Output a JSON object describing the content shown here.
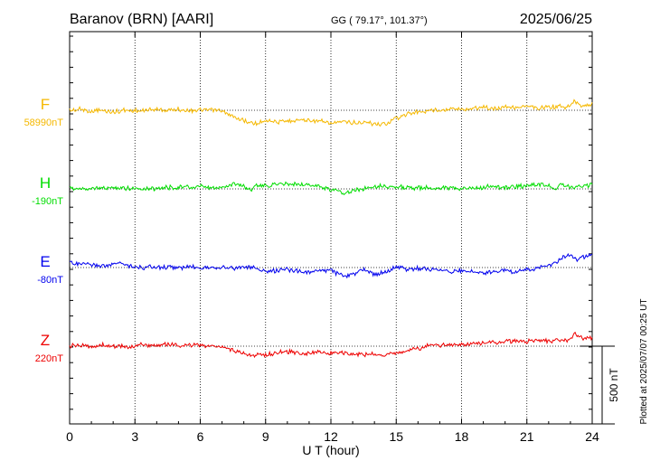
{
  "header": {
    "station": "Baranov (BRN)  [AARI]",
    "coords": "GG ( 79.17°, 101.37°)",
    "date": "2025/06/25",
    "plotted": "Plotted at 2025/07/07 00:25 UT"
  },
  "scale_bar": {
    "label": "500 nT"
  },
  "chart_data": {
    "type": "line",
    "title": "Baranov (BRN)  [AARI]",
    "xlabel": "U T (hour)",
    "ylabel": "",
    "xlim": [
      0,
      24
    ],
    "x_ticks": [
      0,
      3,
      6,
      9,
      12,
      15,
      18,
      21,
      24
    ],
    "grid": true,
    "scale_nT": 500,
    "series": [
      {
        "name": "F",
        "baseline_label": "58990nT",
        "color": "#f5b800",
        "x": [
          0,
          0.5,
          1,
          1.5,
          2,
          2.3,
          2.5,
          3,
          3.5,
          4,
          4.5,
          5,
          5.5,
          6,
          6.5,
          7,
          7.3,
          7.6,
          8,
          8.3,
          8.6,
          9,
          9.5,
          10,
          10.5,
          11,
          11.5,
          12,
          12.5,
          13,
          13.5,
          14,
          14.3,
          14.6,
          15,
          15.5,
          16,
          16.5,
          17,
          17.5,
          18,
          18.5,
          19,
          19.5,
          20,
          20.5,
          21,
          21.5,
          22,
          22.5,
          22.8,
          23,
          23.2,
          23.5,
          24
        ],
        "values": [
          0,
          5,
          -5,
          0,
          -10,
          -5,
          0,
          -5,
          0,
          5,
          0,
          5,
          0,
          0,
          0,
          -5,
          -30,
          -45,
          -65,
          -80,
          -85,
          -60,
          -75,
          -70,
          -60,
          -65,
          -70,
          -85,
          -75,
          -80,
          -80,
          -85,
          -90,
          -85,
          -50,
          -25,
          -10,
          -5,
          5,
          10,
          5,
          15,
          20,
          10,
          25,
          20,
          25,
          10,
          20,
          25,
          15,
          30,
          60,
          30,
          40
        ]
      },
      {
        "name": "H",
        "baseline_label": "-190nT",
        "color": "#00dd00",
        "x": [
          0,
          0.5,
          1,
          1.5,
          2,
          2.5,
          3,
          3.5,
          4,
          4.5,
          5,
          5.5,
          6,
          6.5,
          7,
          7.5,
          8,
          8.3,
          8.5,
          9,
          9.5,
          10,
          10.5,
          11,
          11.5,
          12,
          12.3,
          12.6,
          13,
          13.5,
          14,
          14.5,
          15,
          15.5,
          16,
          16.5,
          17,
          17.5,
          18,
          18.5,
          19,
          19.5,
          20,
          20.5,
          21,
          21.5,
          22,
          22.3,
          22.5,
          23,
          23.5,
          24
        ],
        "values": [
          0,
          5,
          0,
          5,
          10,
          5,
          5,
          0,
          5,
          10,
          10,
          10,
          15,
          5,
          10,
          35,
          20,
          -10,
          25,
          15,
          30,
          35,
          30,
          25,
          15,
          -10,
          -5,
          -25,
          -15,
          5,
          20,
          15,
          10,
          10,
          5,
          5,
          10,
          5,
          0,
          5,
          10,
          15,
          5,
          15,
          20,
          25,
          25,
          -5,
          30,
          10,
          20,
          25
        ]
      },
      {
        "name": "E",
        "baseline_label": "-80nT",
        "color": "#0000ee",
        "x": [
          0,
          0.3,
          0.6,
          1,
          1.5,
          2,
          2.3,
          2.6,
          3,
          3.3,
          3.6,
          4,
          4.5,
          5,
          5.5,
          6,
          6.5,
          7,
          7.5,
          8,
          8.5,
          9,
          9.5,
          10,
          10.5,
          11,
          11.5,
          12,
          12.3,
          12.6,
          13,
          13.5,
          14,
          14.5,
          15,
          15.5,
          16,
          16.5,
          17,
          17.5,
          18,
          18.5,
          19,
          19.5,
          20,
          20.5,
          21,
          21.3,
          21.6,
          22,
          22.3,
          22.6,
          23,
          23.3,
          23.6,
          24
        ],
        "values": [
          40,
          20,
          25,
          15,
          10,
          15,
          35,
          15,
          10,
          -5,
          10,
          0,
          5,
          0,
          5,
          0,
          5,
          0,
          -5,
          5,
          0,
          -25,
          -20,
          -10,
          -20,
          -35,
          -20,
          -15,
          -40,
          -55,
          -45,
          -10,
          -45,
          -25,
          5,
          -10,
          -5,
          -10,
          -15,
          -25,
          -20,
          -25,
          -35,
          -25,
          -15,
          -30,
          -10,
          -15,
          0,
          10,
          30,
          60,
          75,
          55,
          70,
          85
        ]
      },
      {
        "name": "Z",
        "baseline_label": "220nT",
        "color": "#ee0000",
        "x": [
          0,
          0.5,
          1,
          1.5,
          2,
          2.5,
          3,
          3.3,
          3.6,
          4,
          4.5,
          5,
          5.5,
          6,
          6.5,
          7,
          7.5,
          8,
          8.3,
          8.6,
          9,
          9.5,
          10,
          10.5,
          11,
          11.5,
          12,
          12.5,
          13,
          13.5,
          14,
          14.3,
          14.6,
          15,
          15.5,
          16,
          16.5,
          17,
          17.5,
          18,
          18.5,
          19,
          19.5,
          20,
          20.5,
          21,
          21.5,
          22,
          22.5,
          23,
          23.2,
          23.5,
          24
        ],
        "values": [
          0,
          5,
          0,
          5,
          0,
          -5,
          0,
          15,
          0,
          5,
          10,
          5,
          5,
          5,
          0,
          -5,
          -25,
          -45,
          -60,
          -55,
          -55,
          -45,
          -35,
          -40,
          -45,
          -35,
          -45,
          -40,
          -50,
          -55,
          -50,
          -60,
          -50,
          -45,
          -30,
          -15,
          0,
          5,
          10,
          10,
          15,
          25,
          25,
          30,
          35,
          30,
          35,
          35,
          35,
          40,
          80,
          55,
          50
        ]
      }
    ]
  }
}
